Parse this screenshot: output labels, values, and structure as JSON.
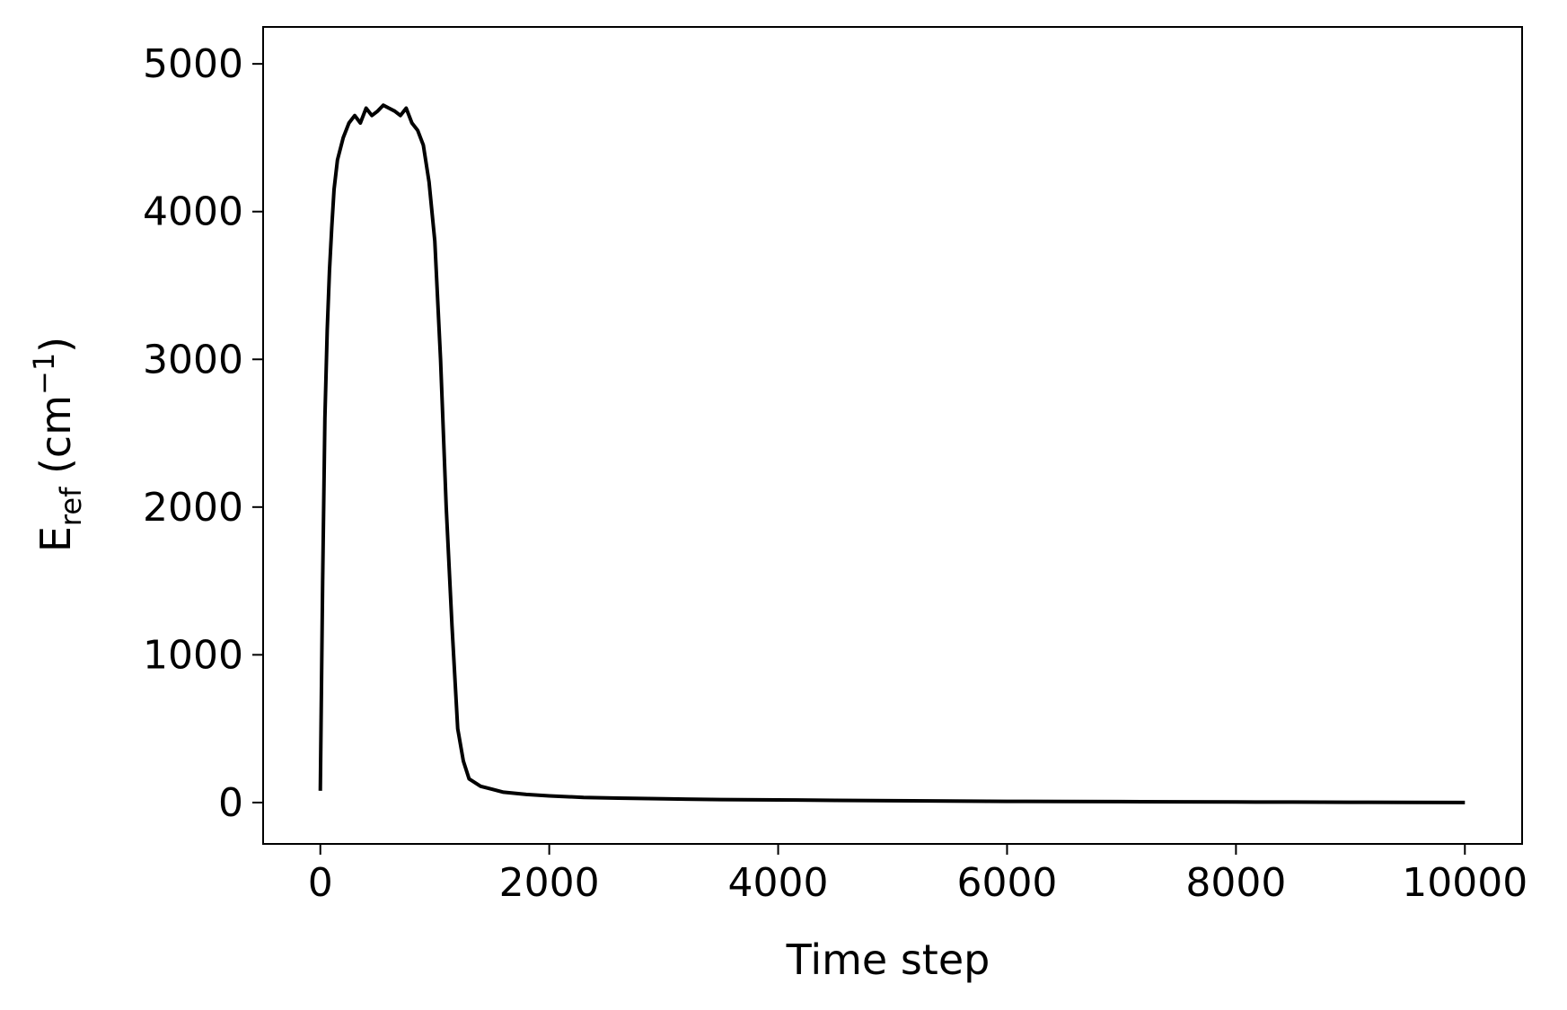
{
  "chart_data": {
    "type": "line",
    "title": "",
    "xlabel": "Time step",
    "ylabel": {
      "main": "E",
      "sub": "ref",
      "unit_open": " (cm",
      "sup": "−1",
      "unit_close": ")"
    },
    "xlim": [
      -500,
      10500
    ],
    "ylim": [
      -280,
      5250
    ],
    "x_ticks": [
      0,
      2000,
      4000,
      6000,
      8000,
      10000
    ],
    "y_ticks": [
      0,
      1000,
      2000,
      3000,
      4000,
      5000
    ],
    "x_tick_labels": [
      "0",
      "2000",
      "4000",
      "6000",
      "8000",
      "10000"
    ],
    "y_tick_labels": [
      "0",
      "1000",
      "2000",
      "3000",
      "4000",
      "5000"
    ],
    "grid": false,
    "legend": "none",
    "line_color": "#000000",
    "series": [
      {
        "x": [
          0,
          20,
          40,
          60,
          80,
          100,
          120,
          150,
          200,
          250,
          300,
          350,
          400,
          450,
          500,
          550,
          600,
          650,
          700,
          750,
          800,
          850,
          900,
          950,
          1000,
          1050,
          1100,
          1150,
          1200,
          1250,
          1300,
          1400,
          1500,
          1600,
          1800,
          2000,
          2300,
          2600,
          3000,
          3500,
          4000,
          4500,
          5000,
          5500,
          6000,
          6500,
          7000,
          7500,
          8000,
          8500,
          9000,
          9500,
          10000
        ],
        "y": [
          80,
          1500,
          2600,
          3200,
          3600,
          3900,
          4150,
          4350,
          4500,
          4600,
          4650,
          4600,
          4700,
          4650,
          4680,
          4720,
          4700,
          4680,
          4650,
          4700,
          4600,
          4550,
          4450,
          4200,
          3800,
          3000,
          2000,
          1200,
          500,
          280,
          160,
          110,
          90,
          70,
          55,
          45,
          35,
          30,
          25,
          20,
          18,
          15,
          12,
          10,
          8,
          7,
          6,
          5,
          4,
          3,
          2,
          1,
          0
        ]
      }
    ]
  }
}
